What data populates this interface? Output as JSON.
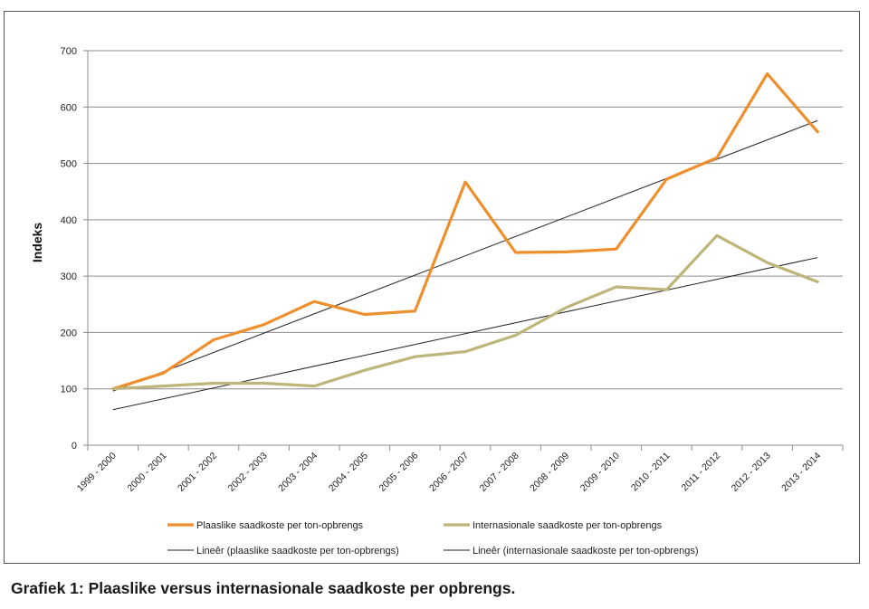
{
  "caption": "Grafiek 1: Plaaslike versus internasionale saadkoste per opbrengs.",
  "chart_data": {
    "type": "line",
    "ylabel": "Indeks",
    "xlabel": "",
    "ylim": [
      0,
      700
    ],
    "yticks": [
      0,
      100,
      200,
      300,
      400,
      500,
      600,
      700
    ],
    "grid": true,
    "legend_position": "bottom",
    "categories": [
      "1999 - 2000",
      "2000 - 2001",
      "2001 - 2002",
      "2002 - 2003",
      "2003 - 2004",
      "2004 - 2005",
      "2005 - 2006",
      "2006 - 2007",
      "2007 - 2008",
      "2008 - 2009",
      "2009 - 2010",
      "2010 - 2011",
      "2011 - 2012",
      "2012 - 2013",
      "2013 - 2014"
    ],
    "series": [
      {
        "name": "Plaaslike saadkoste per ton-opbrengs",
        "color": "#EE8F2E",
        "values": [
          100,
          128,
          187,
          214,
          255,
          232,
          238,
          467,
          342,
          343,
          348,
          472,
          510,
          659,
          556
        ]
      },
      {
        "name": "Internasionale saadkoste per ton-opbrengs",
        "color": "#BDB57A",
        "values": [
          100,
          105,
          110,
          110,
          105,
          133,
          157,
          166,
          195,
          244,
          281,
          276,
          372,
          324,
          290
        ]
      }
    ],
    "trendlines": [
      {
        "name": "Lineêr (plaaslike saadkoste per ton-opbrengs)",
        "color": "#222222",
        "start": 96,
        "end": 576
      },
      {
        "name": "Lineêr (internasionale saadkoste per ton-opbrengs)",
        "color": "#222222",
        "start": 63,
        "end": 333
      }
    ]
  }
}
